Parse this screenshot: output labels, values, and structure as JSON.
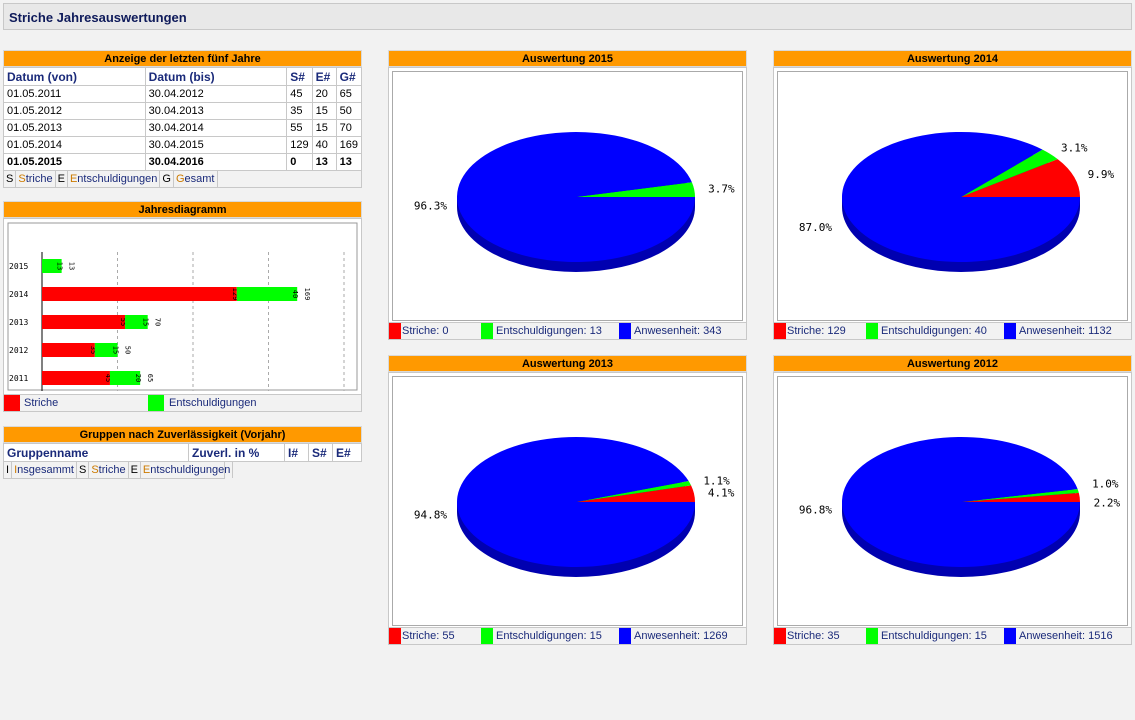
{
  "page": {
    "title": "Striche Jahresauswertungen"
  },
  "years_table": {
    "header": "Anzeige der letzten fünf Jahre",
    "columns": [
      "Datum (von)",
      "Datum (bis)",
      "S#",
      "E#",
      "G#"
    ],
    "rows": [
      {
        "from": "01.05.2011",
        "to": "30.04.2012",
        "s": "45",
        "e": "20",
        "g": "65",
        "bold": false
      },
      {
        "from": "01.05.2012",
        "to": "30.04.2013",
        "s": "35",
        "e": "15",
        "g": "50",
        "bold": false
      },
      {
        "from": "01.05.2013",
        "to": "30.04.2014",
        "s": "55",
        "e": "15",
        "g": "70",
        "bold": false
      },
      {
        "from": "01.05.2014",
        "to": "30.04.2015",
        "s": "129",
        "e": "40",
        "g": "169",
        "bold": false
      },
      {
        "from": "01.05.2015",
        "to": "30.04.2016",
        "s": "0",
        "e": "13",
        "g": "13",
        "bold": true
      }
    ],
    "legend": [
      {
        "key": "S",
        "first": "S",
        "rest": "triche"
      },
      {
        "key": "E",
        "first": "E",
        "rest": "ntschuldigungen"
      },
      {
        "key": "G",
        "first": "G",
        "rest": "esamt"
      }
    ]
  },
  "year_chart": {
    "header": "Jahresdiagramm",
    "legend": [
      {
        "label": "Striche",
        "color": "#ff0000"
      },
      {
        "label": "Entschuldigungen",
        "color": "#00ff00"
      }
    ]
  },
  "groups_table": {
    "header": "Gruppen nach Zuverlässigkeit (Vorjahr)",
    "columns": [
      "Gruppenname",
      "Zuverl. in %",
      "I#",
      "S#",
      "E#"
    ],
    "legend": [
      {
        "key": "I",
        "first": "I",
        "rest": "nsgesammt"
      },
      {
        "key": "S",
        "first": "S",
        "rest": "triche"
      },
      {
        "key": "E",
        "first": "E",
        "rest": "ntschuldigungen"
      }
    ]
  },
  "colors": {
    "striche": "#ff0000",
    "entschuldigungen": "#00ff00",
    "anwesenheit": "#0000ff",
    "header": "#ff9900"
  },
  "chart_data": [
    {
      "type": "bar",
      "orientation": "horizontal",
      "stacked": true,
      "categories": [
        "2015",
        "2014",
        "2013",
        "2012",
        "2011"
      ],
      "series": [
        {
          "name": "Striche",
          "values": [
            0,
            129,
            55,
            35,
            45
          ]
        },
        {
          "name": "Entschuldigungen",
          "values": [
            13,
            40,
            15,
            15,
            20
          ]
        }
      ],
      "totals": [
        13,
        169,
        70,
        50,
        65
      ],
      "xlim": [
        0,
        200
      ],
      "grid": true
    },
    {
      "type": "pie",
      "title": "Auswertung 2015",
      "slices": [
        {
          "name": "Striche",
          "value": 0,
          "label": ""
        },
        {
          "name": "Entschuldigungen",
          "value": 13,
          "label": "3.7%"
        },
        {
          "name": "Anwesenheit",
          "value": 343,
          "label": "96.3%"
        }
      ],
      "legend": [
        "Striche: 0",
        "Entschuldigungen: 13",
        "Anwesenheit: 343"
      ]
    },
    {
      "type": "pie",
      "title": "Auswertung 2014",
      "slices": [
        {
          "name": "Striche",
          "value": 129,
          "label": "9.9%"
        },
        {
          "name": "Entschuldigungen",
          "value": 40,
          "label": "3.1%"
        },
        {
          "name": "Anwesenheit",
          "value": 1132,
          "label": "87.0%"
        }
      ],
      "legend": [
        "Striche: 129",
        "Entschuldigungen: 40",
        "Anwesenheit: 1132"
      ]
    },
    {
      "type": "pie",
      "title": "Auswertung 2013",
      "slices": [
        {
          "name": "Striche",
          "value": 55,
          "label": "4.1%"
        },
        {
          "name": "Entschuldigungen",
          "value": 15,
          "label": "1.1%"
        },
        {
          "name": "Anwesenheit",
          "value": 1269,
          "label": "94.8%"
        }
      ],
      "legend": [
        "Striche: 55",
        "Entschuldigungen: 15",
        "Anwesenheit: 1269"
      ]
    },
    {
      "type": "pie",
      "title": "Auswertung 2012",
      "slices": [
        {
          "name": "Striche",
          "value": 35,
          "label": "2.2%"
        },
        {
          "name": "Entschuldigungen",
          "value": 15,
          "label": "1.0%"
        },
        {
          "name": "Anwesenheit",
          "value": 1516,
          "label": "96.8%"
        }
      ],
      "legend": [
        "Striche: 35",
        "Entschuldigungen: 15",
        "Anwesenheit: 1516"
      ]
    }
  ]
}
